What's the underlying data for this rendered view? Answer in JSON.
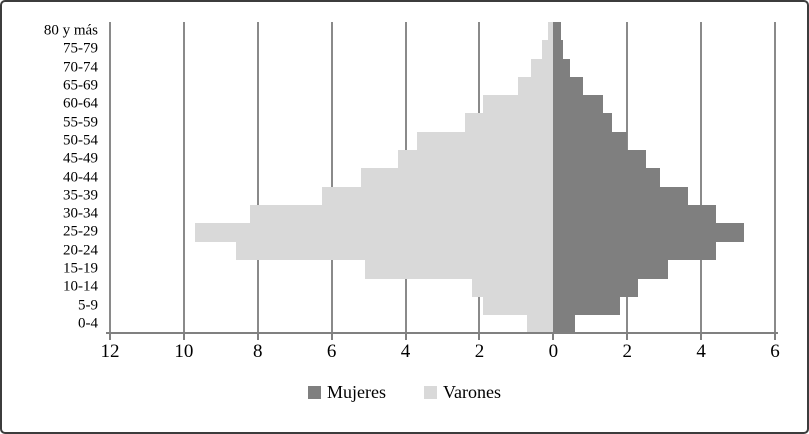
{
  "chart_data": {
    "type": "bar",
    "subtype": "population-pyramid",
    "title": "",
    "categories": [
      "80 y más",
      "75-79",
      "70-74",
      "65-69",
      "60-64",
      "55-59",
      "50-54",
      "45-49",
      "40-44",
      "35-39",
      "30-34",
      "25-29",
      "20-24",
      "15-19",
      "10-14",
      "5-9",
      "0-4"
    ],
    "series": [
      {
        "name": "Mujeres",
        "side": "right",
        "color": "#7f7f7f",
        "values": [
          0.2,
          0.25,
          0.45,
          0.8,
          1.35,
          1.6,
          2.0,
          2.5,
          2.9,
          3.65,
          4.4,
          5.15,
          4.4,
          3.1,
          2.3,
          1.8,
          0.6
        ]
      },
      {
        "name": "Varones",
        "side": "left",
        "color": "#d9d9d9",
        "values": [
          0.15,
          0.3,
          0.6,
          0.95,
          1.9,
          2.4,
          3.7,
          4.2,
          5.2,
          6.25,
          8.2,
          9.7,
          8.6,
          5.1,
          2.2,
          1.9,
          0.7
        ]
      }
    ],
    "x_axis": {
      "left_max": 12,
      "right_max": 6,
      "tick_step": 2,
      "tick_labels": [
        "12",
        "10",
        "8",
        "6",
        "4",
        "2",
        "0",
        "2",
        "4",
        "6"
      ]
    },
    "grid": true,
    "gridline_color": "#8a8a8a",
    "axis_color": "#808080",
    "legend_position": "bottom"
  }
}
